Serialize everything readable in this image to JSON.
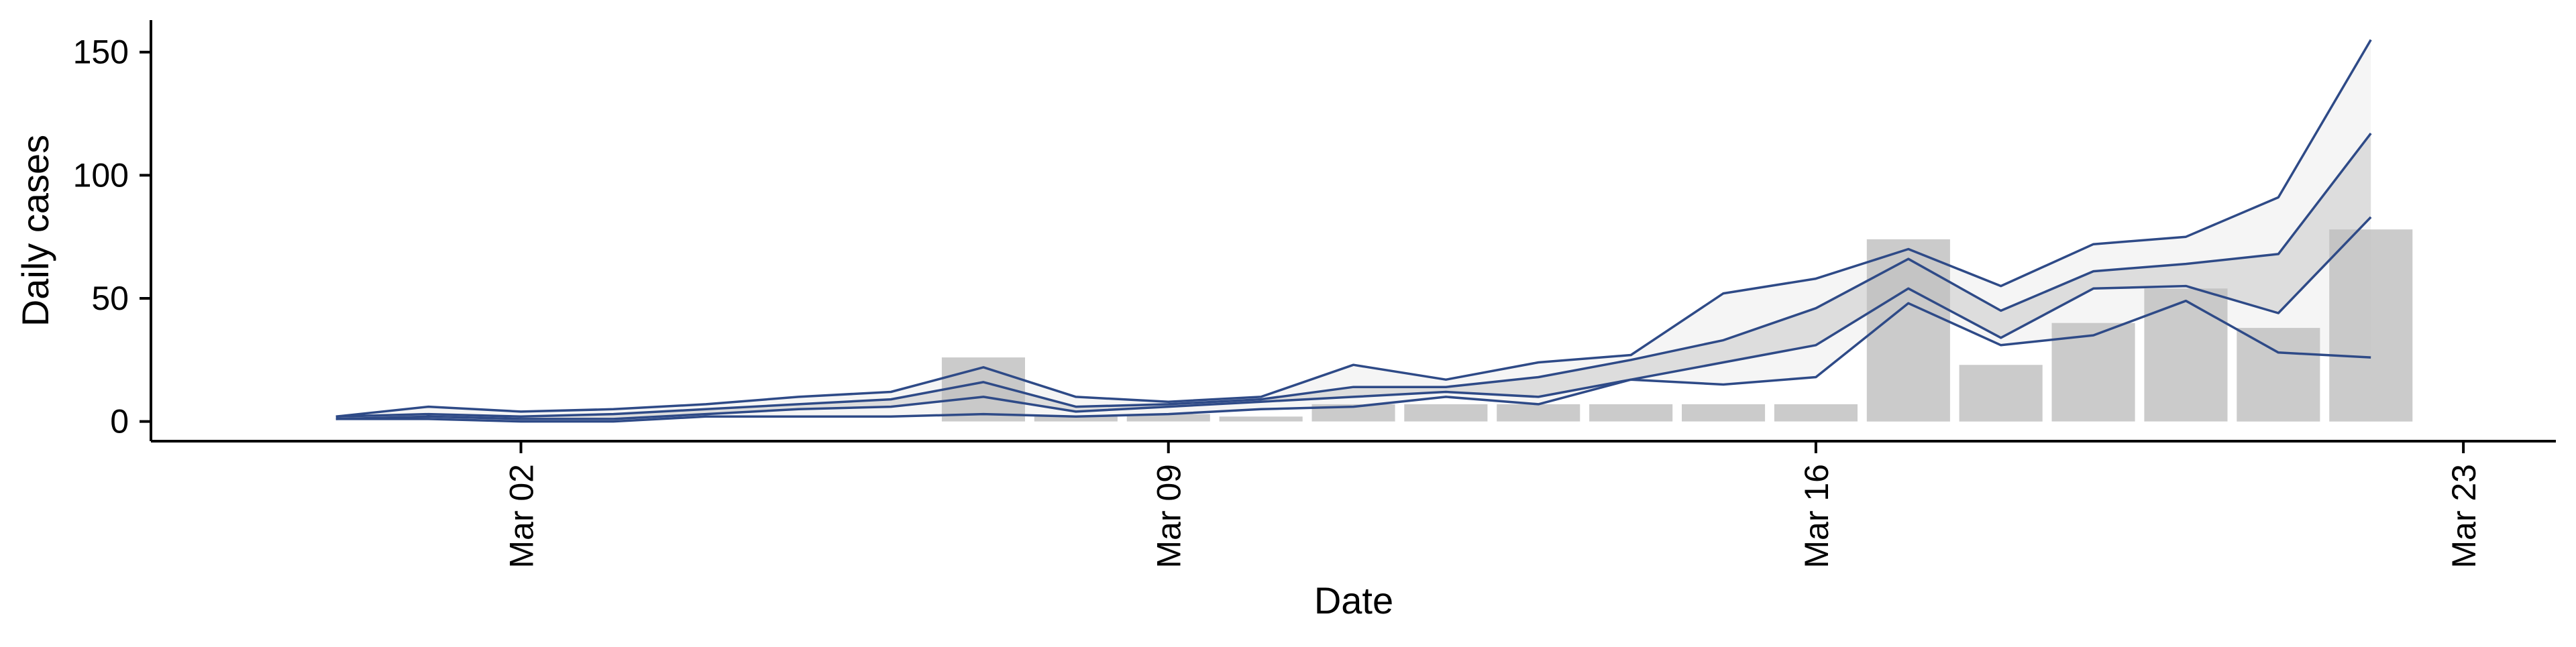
{
  "chart_data": {
    "type": "area",
    "xlabel": "Date",
    "ylabel": "Daily cases",
    "ylim": [
      -8,
      163
    ],
    "xlim": [
      "2020-02-27",
      "2020-03-24"
    ],
    "y_ticks": [
      0,
      50,
      100,
      150
    ],
    "x_ticks": [
      {
        "date": "2020-03-02",
        "label": "Mar 02"
      },
      {
        "date": "2020-03-09",
        "label": "Mar 09"
      },
      {
        "date": "2020-03-16",
        "label": "Mar 16"
      },
      {
        "date": "2020-03-23",
        "label": "Mar 23"
      }
    ],
    "grid": false,
    "legend": "none",
    "bar_color": "#bdbdbd",
    "line_color": "#2e4a87",
    "band_colors": {
      "inner": "#9b9b9b",
      "middle": "#d3d3d3",
      "outer": "#ececec"
    },
    "reported_cases": {
      "dates": [
        "2020-03-07",
        "2020-03-08",
        "2020-03-09",
        "2020-03-10",
        "2020-03-11",
        "2020-03-12",
        "2020-03-13",
        "2020-03-14",
        "2020-03-15",
        "2020-03-16",
        "2020-03-17",
        "2020-03-18",
        "2020-03-19",
        "2020-03-20",
        "2020-03-21",
        "2020-03-22"
      ],
      "values": [
        26,
        2,
        3,
        2,
        7,
        7,
        7,
        7,
        7,
        7,
        74,
        23,
        40,
        54,
        38,
        78
      ]
    },
    "estimate": {
      "dates": [
        "2020-02-29",
        "2020-03-01",
        "2020-03-02",
        "2020-03-03",
        "2020-03-04",
        "2020-03-05",
        "2020-03-06",
        "2020-03-07",
        "2020-03-08",
        "2020-03-09",
        "2020-03-10",
        "2020-03-11",
        "2020-03-12",
        "2020-03-13",
        "2020-03-14",
        "2020-03-15",
        "2020-03-16",
        "2020-03-17",
        "2020-03-18",
        "2020-03-19",
        "2020-03-20",
        "2020-03-21",
        "2020-03-22"
      ],
      "upper_90": [
        2,
        6,
        4,
        5,
        7,
        10,
        12,
        22,
        10,
        8,
        10,
        23,
        17,
        24,
        27,
        52,
        58,
        70,
        55,
        72,
        75,
        91,
        155
      ],
      "upper_50": [
        2,
        3,
        2,
        3,
        5,
        7,
        9,
        16,
        6,
        7,
        9,
        14,
        14,
        18,
        25,
        33,
        46,
        66,
        45,
        61,
        64,
        68,
        117
      ],
      "lower_50": [
        1,
        2,
        1,
        1,
        3,
        5,
        6,
        10,
        4,
        6,
        8,
        10,
        12,
        10,
        17,
        24,
        31,
        54,
        34,
        54,
        55,
        44,
        83
      ],
      "lower_90": [
        1,
        1,
        0,
        0,
        2,
        2,
        2,
        3,
        2,
        3,
        5,
        6,
        10,
        7,
        17,
        15,
        18,
        48,
        31,
        35,
        49,
        28,
        26
      ]
    }
  }
}
